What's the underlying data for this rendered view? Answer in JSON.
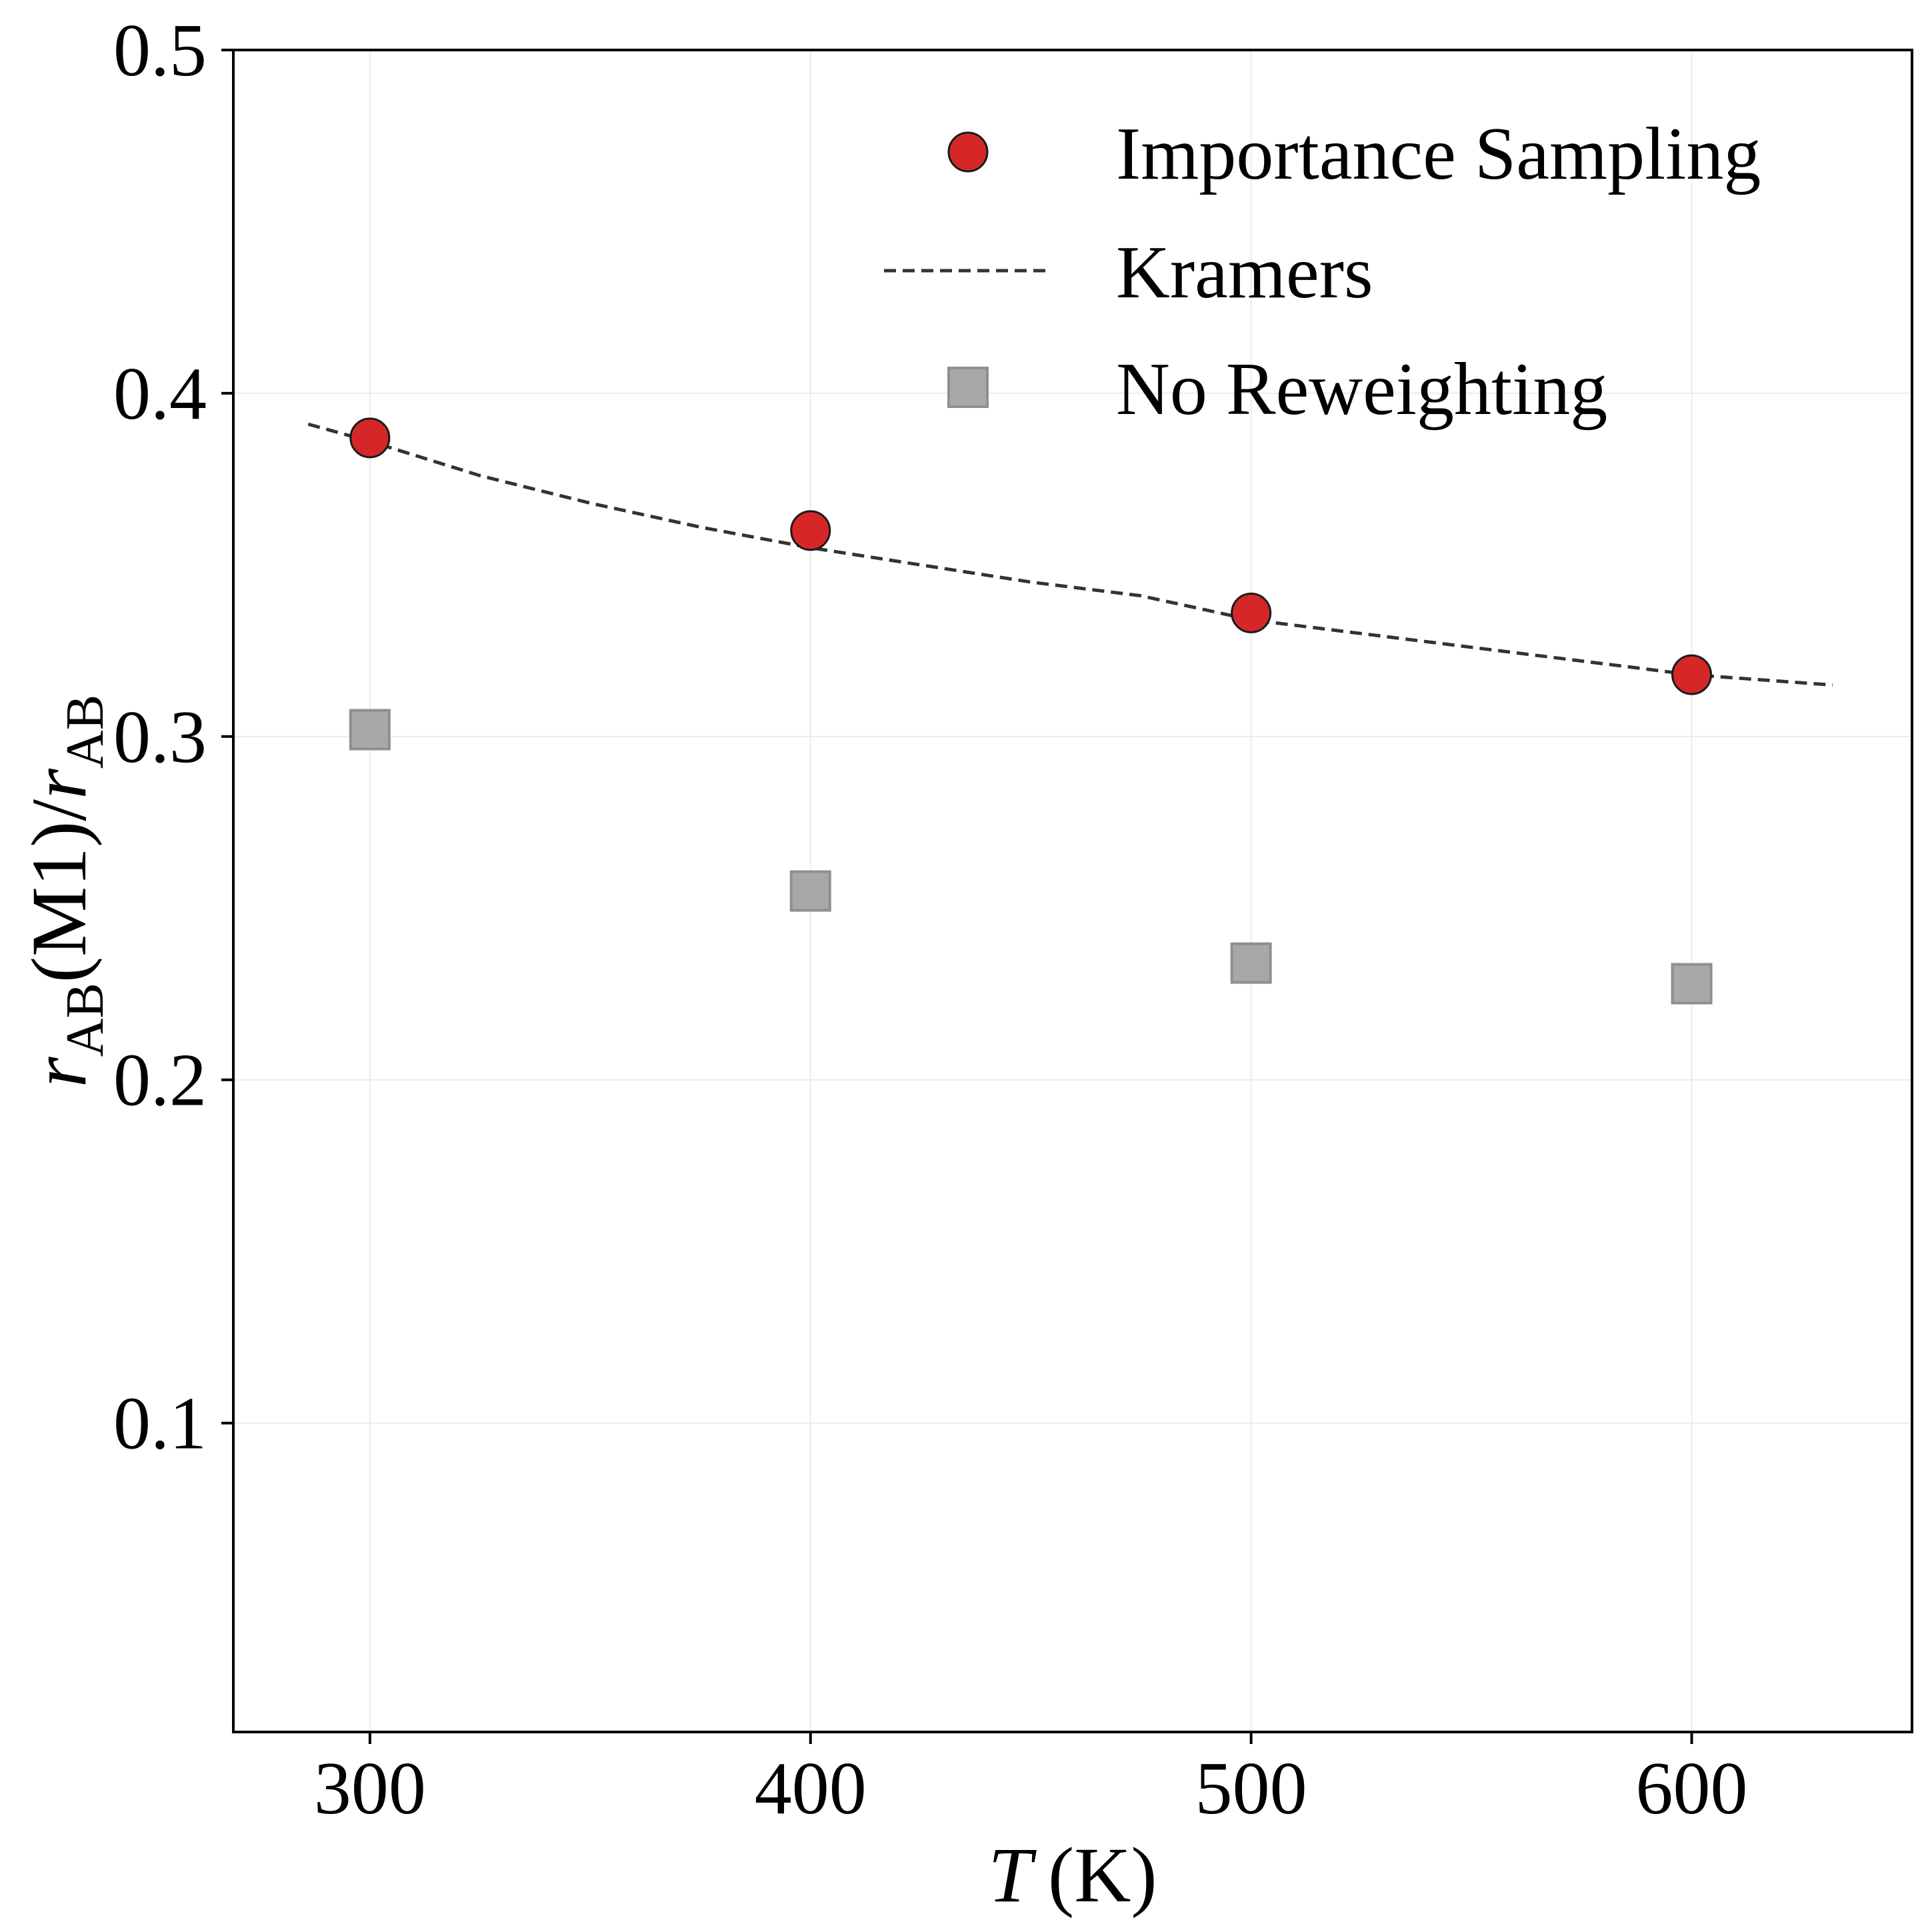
{
  "chart_data": {
    "type": "scatter",
    "xlabel": {
      "var": "T",
      "unit": "(K)"
    },
    "ylabel": {
      "r1": "r",
      "sub1": "AB",
      "mid": "(M1)/",
      "r2": "r",
      "sub2": "AB"
    },
    "xlim": [
      269,
      650
    ],
    "ylim": [
      0.01,
      0.5
    ],
    "xticks": [
      300,
      400,
      500,
      600
    ],
    "yticks": [
      0.1,
      0.2,
      0.3,
      0.4,
      0.5
    ],
    "xtick_labels": [
      "300",
      "400",
      "500",
      "600"
    ],
    "ytick_labels": [
      "0.1",
      "0.2",
      "0.3",
      "0.4",
      "0.5"
    ],
    "grid": true,
    "legend_position": "top-right",
    "series": [
      {
        "name": "Importance Sampling",
        "kind": "markers",
        "marker": "circle",
        "color": "#d62728",
        "x": [
          300,
          400,
          500,
          600
        ],
        "y": [
          0.387,
          0.36,
          0.336,
          0.318
        ]
      },
      {
        "name": "Kramers",
        "kind": "line",
        "style": "dashed",
        "color": "#333333",
        "x": [
          286,
          300,
          325,
          350,
          375,
          400,
          425,
          450,
          475,
          500,
          525,
          550,
          575,
          600,
          632
        ],
        "y": [
          0.391,
          0.386,
          0.376,
          0.368,
          0.361,
          0.355,
          0.35,
          0.345,
          0.341,
          0.334,
          0.33,
          0.326,
          0.322,
          0.318,
          0.315
        ]
      },
      {
        "name": "No Reweighting",
        "kind": "markers",
        "marker": "square",
        "color": "#a8a8a8",
        "x": [
          300,
          400,
          500,
          600
        ],
        "y": [
          0.302,
          0.255,
          0.234,
          0.228
        ]
      }
    ]
  }
}
